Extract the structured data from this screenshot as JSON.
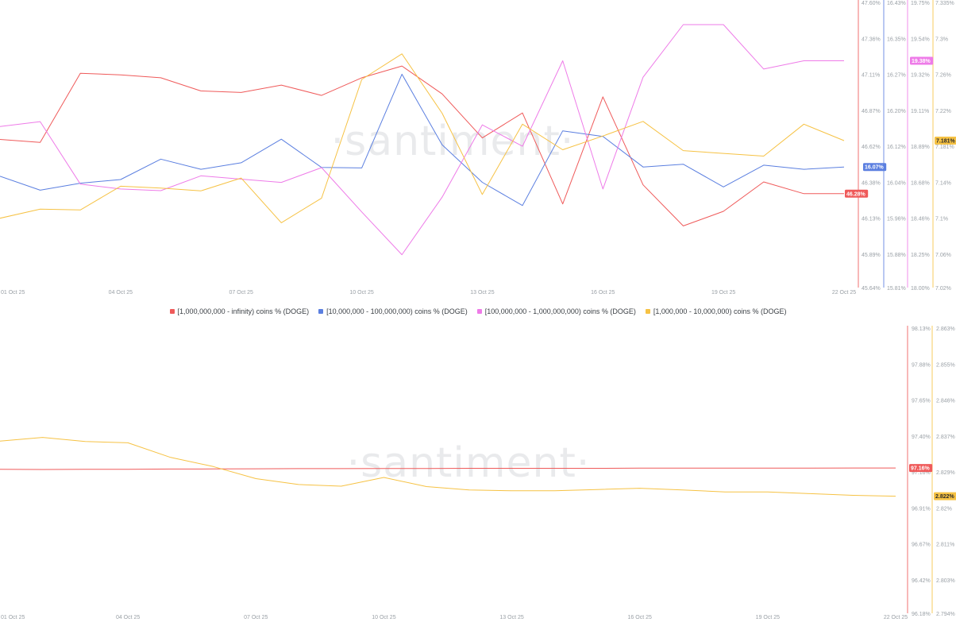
{
  "watermark": "·santiment·",
  "x_labels": [
    "01 Oct 25",
    "04 Oct 25",
    "07 Oct 25",
    "10 Oct 25",
    "13 Oct 25",
    "16 Oct 25",
    "19 Oct 25",
    "22 Oct 25"
  ],
  "legend": [
    {
      "label": "[1,000,000,000 - infinity) coins % (DOGE)",
      "color": "#ef5a5a"
    },
    {
      "label": "[10,000,000 - 100,000,000) coins % (DOGE)",
      "color": "#5b7fe0"
    },
    {
      "label": "[100,000,000 - 1,000,000,000) coins % (DOGE)",
      "color": "#ee7be8"
    },
    {
      "label": "[1,000,000 - 10,000,000) coins % (DOGE)",
      "color": "#f6c244"
    }
  ],
  "chart_data": [
    {
      "type": "line",
      "x": [
        "01 Oct 25",
        "02 Oct 25",
        "03 Oct 25",
        "04 Oct 25",
        "05 Oct 25",
        "06 Oct 25",
        "07 Oct 25",
        "08 Oct 25",
        "09 Oct 25",
        "10 Oct 25",
        "11 Oct 25",
        "12 Oct 25",
        "13 Oct 25",
        "14 Oct 25",
        "15 Oct 25",
        "16 Oct 25",
        "17 Oct 25",
        "18 Oct 25",
        "19 Oct 25",
        "20 Oct 25",
        "21 Oct 25",
        "22 Oct 25"
      ],
      "axes": [
        {
          "id": "a1",
          "color": "#ef5a5a",
          "range": [
            45.64,
            47.6
          ],
          "ticks": [
            "47.60%",
            "47.36%",
            "47.11%",
            "46.87%",
            "46.62%",
            "46.38%",
            "46.13%",
            "45.89%",
            "45.64%"
          ],
          "current": "46.28%"
        },
        {
          "id": "a2",
          "color": "#5b7fe0",
          "range": [
            15.81,
            16.43
          ],
          "ticks": [
            "16.43%",
            "16.35%",
            "16.27%",
            "16.20%",
            "16.12%",
            "16.04%",
            "15.96%",
            "15.88%",
            "15.81%"
          ],
          "current": "16.07%"
        },
        {
          "id": "a3",
          "color": "#ee7be8",
          "range": [
            18.0,
            19.75
          ],
          "ticks": [
            "19.75%",
            "19.54%",
            "19.32%",
            "19.11%",
            "18.89%",
            "18.68%",
            "18.46%",
            "18.25%",
            "18.00%"
          ],
          "current": "19.38%"
        },
        {
          "id": "a4",
          "color": "#f6c244",
          "range": [
            7.02,
            7.335
          ],
          "ticks": [
            "7.335%",
            "7.3%",
            "7.26%",
            "7.22%",
            "7.181%",
            "7.14%",
            "7.1%",
            "7.06%",
            "7.02%"
          ],
          "current": "7.181%"
        }
      ],
      "series": [
        {
          "name": "[1,000,000,000 - infinity) coins % (DOGE)",
          "axis": "a1",
          "color": "#ef5a5a",
          "values": [
            46.65,
            46.63,
            47.1,
            47.09,
            47.07,
            46.98,
            46.97,
            47.02,
            46.95,
            47.07,
            47.15,
            46.96,
            46.66,
            46.83,
            46.21,
            46.94,
            46.34,
            46.06,
            46.16,
            46.36,
            46.28,
            46.28
          ]
        },
        {
          "name": "[10,000,000 - 100,000,000) coins % (DOGE)",
          "axis": "a2",
          "color": "#5b7fe0",
          "values": [
            16.05,
            16.02,
            16.035,
            16.043,
            16.087,
            16.065,
            16.079,
            16.13,
            16.069,
            16.068,
            16.27,
            16.118,
            16.037,
            15.987,
            16.148,
            16.136,
            16.07,
            16.076,
            16.027,
            16.074,
            16.065,
            16.07
          ]
        },
        {
          "name": "[100,000,000 - 1,000,000,000) coins % (DOGE)",
          "axis": "a3",
          "color": "#ee7be8",
          "values": [
            18.98,
            19.01,
            18.63,
            18.6,
            18.59,
            18.68,
            18.66,
            18.64,
            18.73,
            18.46,
            18.2,
            18.55,
            18.99,
            18.86,
            19.38,
            18.6,
            19.28,
            19.6,
            19.6,
            19.33,
            19.38,
            19.38
          ]
        },
        {
          "name": "[1,000,000 - 10,000,000) coins % (DOGE)",
          "axis": "a4",
          "color": "#f6c244",
          "values": [
            7.096,
            7.106,
            7.105,
            7.131,
            7.129,
            7.126,
            7.14,
            7.091,
            7.118,
            7.248,
            7.276,
            7.211,
            7.122,
            7.199,
            7.171,
            7.186,
            7.202,
            7.17,
            7.167,
            7.164,
            7.199,
            7.181
          ]
        }
      ]
    },
    {
      "type": "line",
      "x": [
        "01 Oct 25",
        "02 Oct 25",
        "03 Oct 25",
        "04 Oct 25",
        "05 Oct 25",
        "06 Oct 25",
        "07 Oct 25",
        "08 Oct 25",
        "09 Oct 25",
        "10 Oct 25",
        "11 Oct 25",
        "12 Oct 25",
        "13 Oct 25",
        "14 Oct 25",
        "15 Oct 25",
        "16 Oct 25",
        "17 Oct 25",
        "18 Oct 25",
        "19 Oct 25",
        "20 Oct 25",
        "21 Oct 25",
        "22 Oct 25"
      ],
      "axes": [
        {
          "id": "b1",
          "color": "#ef5a5a",
          "range": [
            96.18,
            98.13
          ],
          "ticks": [
            "98.13%",
            "97.88%",
            "97.65%",
            "97.40%",
            "97.16%",
            "96.91%",
            "96.67%",
            "96.42%",
            "96.18%"
          ],
          "current": "97.16%"
        },
        {
          "id": "b2",
          "color": "#f6c244",
          "range": [
            2.794,
            2.863
          ],
          "ticks": [
            "2.863%",
            "2.855%",
            "2.846%",
            "2.837%",
            "2.829%",
            "2.82%",
            "2.811%",
            "2.803%",
            "2.794%"
          ],
          "current": "2.822%"
        }
      ],
      "series": [
        {
          "name": "[1,000,000,000 - infinity) coins % (DOGE)",
          "axis": "b1",
          "color": "#ef5a5a",
          "values": [
            97.156,
            97.155,
            97.156,
            97.156,
            97.158,
            97.159,
            97.16,
            97.161,
            97.161,
            97.162,
            97.162,
            97.163,
            97.163,
            97.163,
            97.163,
            97.164,
            97.164,
            97.164,
            97.164,
            97.164,
            97.165,
            97.165
          ]
        },
        {
          "name": "[1,000,000 - 10,000,000) coins % (DOGE)",
          "axis": "b2",
          "color": "#f6c244",
          "values": [
            2.8353,
            2.8362,
            2.8352,
            2.8349,
            2.8314,
            2.8292,
            2.8263,
            2.8249,
            2.8245,
            2.8266,
            2.8244,
            2.8236,
            2.8234,
            2.8234,
            2.8237,
            2.824,
            2.8236,
            2.8231,
            2.8231,
            2.8227,
            2.8223,
            2.8221
          ]
        }
      ]
    }
  ]
}
